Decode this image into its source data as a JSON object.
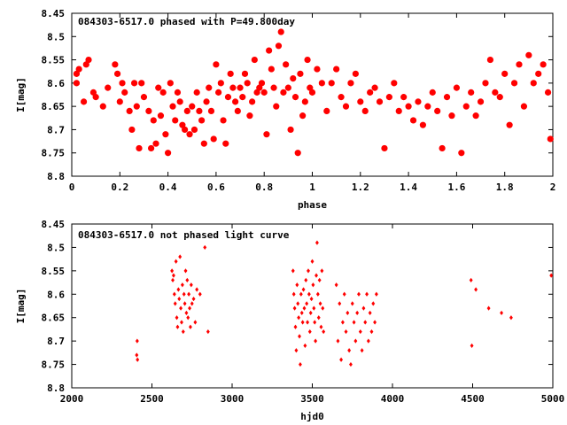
{
  "chart_data": [
    {
      "type": "scatter",
      "title": "084303-6517.0 phased with P=49.800day",
      "xlabel": "phase",
      "ylabel": "I[mag]",
      "xlim": [
        0,
        2
      ],
      "ylim": [
        8.8,
        8.45
      ],
      "y_inverted": true,
      "grid": false,
      "marker": "star",
      "color": "#ff0000",
      "xticks": [
        "0",
        "0.2",
        "0.4",
        "0.6",
        "0.8",
        "1",
        "1.2",
        "1.4",
        "1.6",
        "1.8",
        "2"
      ],
      "yticks": [
        "8.45",
        "8.5",
        "8.55",
        "8.6",
        "8.65",
        "8.7",
        "8.75",
        "8.8"
      ],
      "series": [
        {
          "x": [
            0.02,
            0.02,
            0.03,
            0.05,
            0.06,
            0.07,
            0.09,
            0.1,
            0.13,
            0.15,
            0.18,
            0.19,
            0.2,
            0.21,
            0.22,
            0.24,
            0.25,
            0.26,
            0.27,
            0.28,
            0.29,
            0.3,
            0.32,
            0.33,
            0.34,
            0.35,
            0.36,
            0.37,
            0.38,
            0.39,
            0.4,
            0.41,
            0.42,
            0.43,
            0.44,
            0.45,
            0.46,
            0.47,
            0.48,
            0.49,
            0.5,
            0.51,
            0.52,
            0.53,
            0.54,
            0.55,
            0.56,
            0.57,
            0.58,
            0.59,
            0.6,
            0.61,
            0.62,
            0.63,
            0.64,
            0.65,
            0.66,
            0.67,
            0.68,
            0.69,
            0.7,
            0.71,
            0.72,
            0.73,
            0.74,
            0.75,
            0.76,
            0.77,
            0.78,
            0.79,
            0.8,
            0.81,
            0.82,
            0.83,
            0.84,
            0.85,
            0.86,
            0.87,
            0.88,
            0.89,
            0.9,
            0.91,
            0.92,
            0.93,
            0.94,
            0.95,
            0.96,
            0.97,
            0.98,
            0.99,
            1.0,
            1.02,
            1.04,
            1.06,
            1.08,
            1.1,
            1.12,
            1.14,
            1.16,
            1.18,
            1.2,
            1.22,
            1.24,
            1.26,
            1.28,
            1.3,
            1.32,
            1.34,
            1.36,
            1.38,
            1.4,
            1.42,
            1.44,
            1.46,
            1.48,
            1.5,
            1.52,
            1.54,
            1.56,
            1.58,
            1.6,
            1.62,
            1.64,
            1.66,
            1.68,
            1.7,
            1.72,
            1.74,
            1.76,
            1.78,
            1.8,
            1.82,
            1.84,
            1.86,
            1.88,
            1.9,
            1.92,
            1.94,
            1.96,
            1.98,
            1.99
          ],
          "y": [
            8.58,
            8.6,
            8.57,
            8.64,
            8.56,
            8.55,
            8.62,
            8.63,
            8.65,
            8.61,
            8.56,
            8.58,
            8.64,
            8.6,
            8.62,
            8.66,
            8.7,
            8.6,
            8.65,
            8.74,
            8.6,
            8.63,
            8.66,
            8.74,
            8.68,
            8.73,
            8.61,
            8.67,
            8.62,
            8.71,
            8.75,
            8.6,
            8.65,
            8.68,
            8.62,
            8.64,
            8.69,
            8.7,
            8.66,
            8.71,
            8.65,
            8.7,
            8.62,
            8.66,
            8.68,
            8.73,
            8.64,
            8.61,
            8.66,
            8.72,
            8.56,
            8.62,
            8.6,
            8.68,
            8.73,
            8.63,
            8.58,
            8.61,
            8.64,
            8.66,
            8.61,
            8.63,
            8.58,
            8.6,
            8.67,
            8.64,
            8.55,
            8.62,
            8.61,
            8.6,
            8.62,
            8.71,
            8.53,
            8.57,
            8.61,
            8.65,
            8.52,
            8.49,
            8.62,
            8.56,
            8.61,
            8.7,
            8.59,
            8.63,
            8.75,
            8.58,
            8.67,
            8.64,
            8.55,
            8.61,
            8.62,
            8.57,
            8.6,
            8.66,
            8.6,
            8.57,
            8.63,
            8.65,
            8.6,
            8.58,
            8.64,
            8.66,
            8.62,
            8.61,
            8.64,
            8.74,
            8.63,
            8.6,
            8.66,
            8.63,
            8.65,
            8.68,
            8.64,
            8.69,
            8.65,
            8.62,
            8.66,
            8.74,
            8.63,
            8.67,
            8.61,
            8.75,
            8.65,
            8.62,
            8.67,
            8.64,
            8.6,
            8.55,
            8.62,
            8.63,
            8.58,
            8.69,
            8.6,
            8.56,
            8.65,
            8.54,
            8.6,
            8.58,
            8.56,
            8.62,
            8.72
          ]
        }
      ]
    },
    {
      "type": "scatter",
      "title": "084303-6517.0 not phased light curve",
      "xlabel": "hjd0",
      "ylabel": "I[mag]",
      "xlim": [
        2000,
        5000
      ],
      "ylim": [
        8.8,
        8.45
      ],
      "y_inverted": true,
      "grid": false,
      "marker": "diamond",
      "color": "#ff0000",
      "xticks": [
        "2000",
        "2500",
        "3000",
        "3500",
        "4000",
        "4500",
        "5000"
      ],
      "yticks": [
        "8.45",
        "8.5",
        "8.55",
        "8.6",
        "8.65",
        "8.7",
        "8.75",
        "8.8"
      ],
      "series": [
        {
          "x": [
            2405,
            2408,
            2410,
            2625,
            2630,
            2635,
            2640,
            2645,
            2650,
            2655,
            2660,
            2665,
            2670,
            2675,
            2680,
            2685,
            2690,
            2695,
            2700,
            2705,
            2710,
            2715,
            2720,
            2725,
            2730,
            2735,
            2740,
            2745,
            2750,
            2760,
            2770,
            2780,
            2800,
            2830,
            2850,
            3380,
            3385,
            3390,
            3395,
            3400,
            3405,
            3410,
            3415,
            3420,
            3425,
            3430,
            3435,
            3440,
            3445,
            3450,
            3455,
            3460,
            3465,
            3470,
            3475,
            3480,
            3485,
            3490,
            3495,
            3500,
            3505,
            3510,
            3515,
            3520,
            3525,
            3530,
            3535,
            3540,
            3545,
            3550,
            3555,
            3560,
            3565,
            3570,
            3650,
            3660,
            3670,
            3680,
            3690,
            3700,
            3710,
            3720,
            3730,
            3740,
            3750,
            3760,
            3770,
            3780,
            3790,
            3800,
            3810,
            3820,
            3830,
            3840,
            3850,
            3860,
            3870,
            3880,
            3890,
            3900,
            4490,
            4495,
            4520,
            4600,
            4680,
            4740,
            4990
          ],
          "y": [
            8.73,
            8.7,
            8.74,
            8.55,
            8.57,
            8.56,
            8.6,
            8.62,
            8.53,
            8.65,
            8.67,
            8.59,
            8.61,
            8.52,
            8.63,
            8.66,
            8.58,
            8.68,
            8.6,
            8.62,
            8.55,
            8.64,
            8.57,
            8.65,
            8.6,
            8.63,
            8.67,
            8.58,
            8.62,
            8.61,
            8.66,
            8.59,
            8.6,
            8.5,
            8.68,
            8.55,
            8.6,
            8.63,
            8.67,
            8.72,
            8.58,
            8.62,
            8.65,
            8.69,
            8.75,
            8.6,
            8.64,
            8.66,
            8.59,
            8.63,
            8.71,
            8.57,
            8.62,
            8.66,
            8.55,
            8.6,
            8.68,
            8.64,
            8.61,
            8.53,
            8.58,
            8.63,
            8.66,
            8.7,
            8.56,
            8.49,
            8.6,
            8.65,
            8.57,
            8.62,
            8.67,
            8.55,
            8.63,
            8.68,
            8.58,
            8.7,
            8.62,
            8.74,
            8.66,
            8.6,
            8.68,
            8.64,
            8.72,
            8.75,
            8.62,
            8.66,
            8.7,
            8.64,
            8.6,
            8.68,
            8.72,
            8.63,
            8.66,
            8.6,
            8.7,
            8.64,
            8.68,
            8.62,
            8.66,
            8.6,
            8.57,
            8.71,
            8.59,
            8.63,
            8.64,
            8.65,
            8.56
          ]
        }
      ]
    }
  ]
}
